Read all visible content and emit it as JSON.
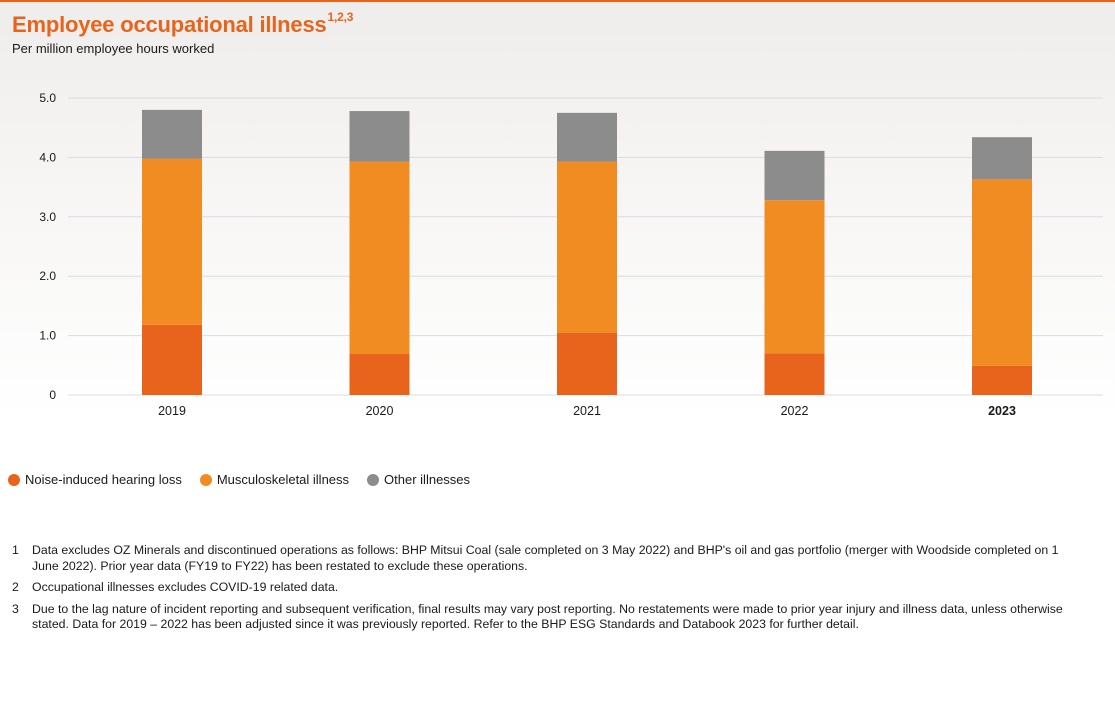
{
  "header": {
    "title": "Employee occupational illness",
    "title_superscript": "1,2,3",
    "subtitle": "Per million employee hours worked"
  },
  "chart_data": {
    "type": "bar",
    "stacked": true,
    "title": "Employee occupational illness",
    "subtitle": "Per million employee hours worked",
    "categories": [
      "2019",
      "2020",
      "2021",
      "2022",
      "2023"
    ],
    "highlight_category": "2023",
    "series": [
      {
        "name": "Noise-induced hearing loss",
        "color": "#e8641c",
        "values": [
          1.18,
          0.69,
          1.05,
          0.7,
          0.49
        ]
      },
      {
        "name": "Musculoskeletal illness",
        "color": "#f18c22",
        "values": [
          2.8,
          3.24,
          2.88,
          2.58,
          3.14
        ]
      },
      {
        "name": "Other illnesses",
        "color": "#8c8c8c",
        "values": [
          0.82,
          0.85,
          0.82,
          0.83,
          0.71
        ]
      }
    ],
    "yticks": [
      "0",
      "1.0",
      "2.0",
      "3.0",
      "4.0",
      "5.0"
    ],
    "ylim": [
      0,
      5
    ],
    "xlabel": "",
    "ylabel": "",
    "grid": true,
    "legend_position": "bottom-left"
  },
  "footnotes": [
    {
      "num": "1",
      "text": "Data excludes OZ Minerals and discontinued operations as follows: BHP Mitsui Coal (sale completed on 3 May 2022) and BHP's oil and gas portfolio (merger with Woodside completed on 1 June 2022). Prior year data (FY19 to FY22) has been restated to exclude these operations."
    },
    {
      "num": "2",
      "text": "Occupational illnesses excludes COVID-19 related data."
    },
    {
      "num": "3",
      "text": "Due to the lag nature of incident reporting and subsequent verification, final results may vary post reporting. No restatements were made to prior year injury and illness data, unless otherwise stated. Data for 2019 – 2022 has been adjusted since it was previously reported. Refer to the BHP ESG Standards and Databook 2023 for further detail."
    }
  ]
}
